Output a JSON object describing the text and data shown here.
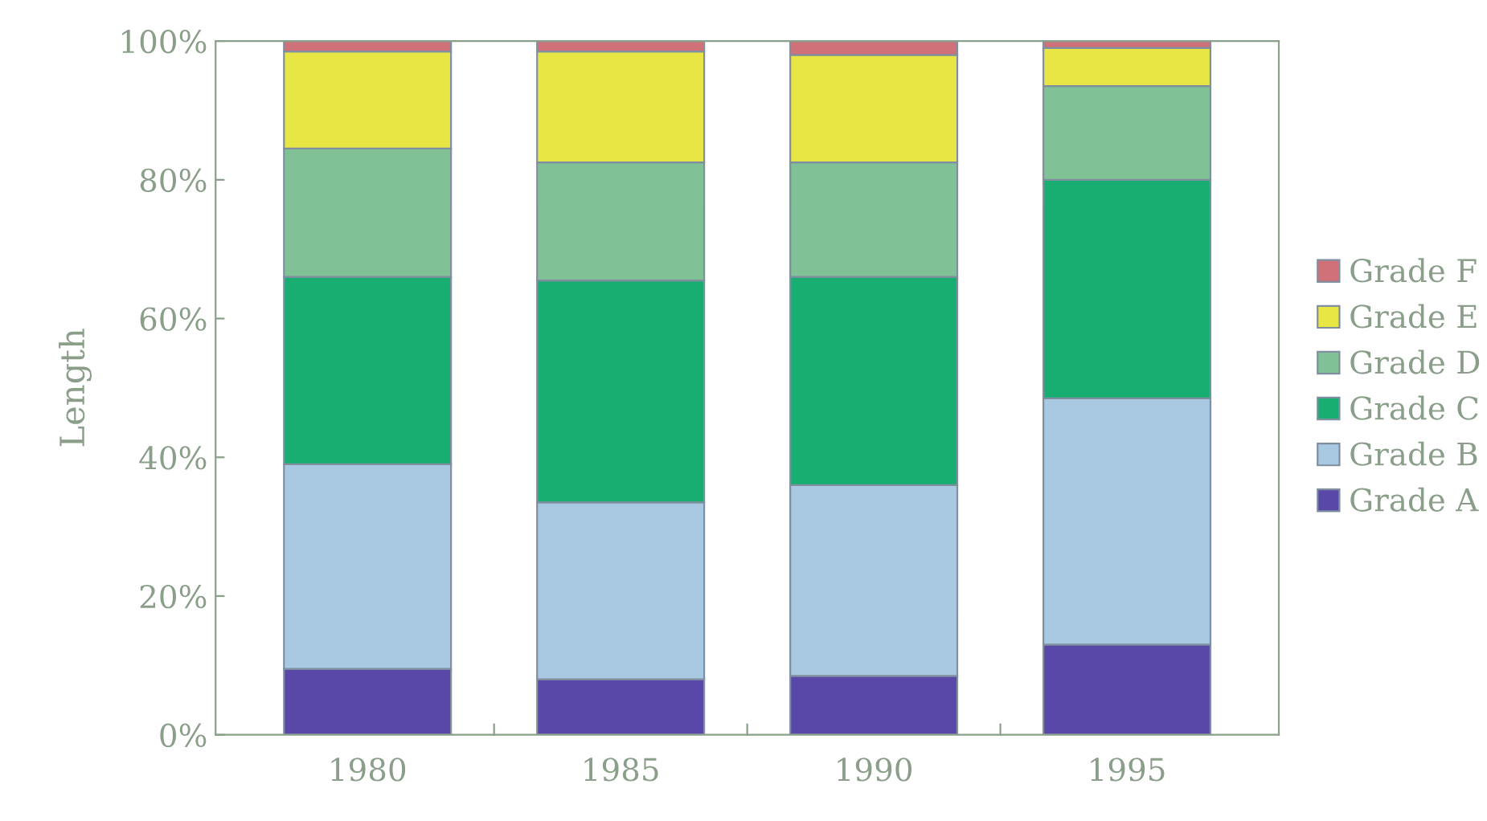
{
  "chart_data": {
    "type": "bar",
    "stacked": true,
    "ylabel": "Length",
    "categories": [
      "1980",
      "1985",
      "1990",
      "1995"
    ],
    "series": [
      {
        "name": "Grade A",
        "color": "#5a48a8",
        "values": [
          9.5,
          8,
          8.5,
          13
        ]
      },
      {
        "name": "Grade B",
        "color": "#a9c9e2",
        "values": [
          29.5,
          25.5,
          27.5,
          35.5
        ]
      },
      {
        "name": "Grade C",
        "color": "#18ae72",
        "values": [
          27,
          32,
          30,
          31.5
        ]
      },
      {
        "name": "Grade D",
        "color": "#80c295",
        "values": [
          18.5,
          17,
          16.5,
          13.5
        ]
      },
      {
        "name": "Grade E",
        "color": "#e8e645",
        "values": [
          14,
          16,
          15.5,
          5.5
        ]
      },
      {
        "name": "Grade F",
        "color": "#d07078",
        "values": [
          1.5,
          1.5,
          2,
          1
        ]
      }
    ],
    "ylim": [
      0,
      100
    ],
    "yticks": [
      {
        "value": 0,
        "label": "0%"
      },
      {
        "value": 20,
        "label": "20%"
      },
      {
        "value": 40,
        "label": "40%"
      },
      {
        "value": 60,
        "label": "60%"
      },
      {
        "value": 80,
        "label": "80%"
      },
      {
        "value": 100,
        "label": "100%"
      }
    ],
    "grid": false,
    "legend": "right"
  }
}
